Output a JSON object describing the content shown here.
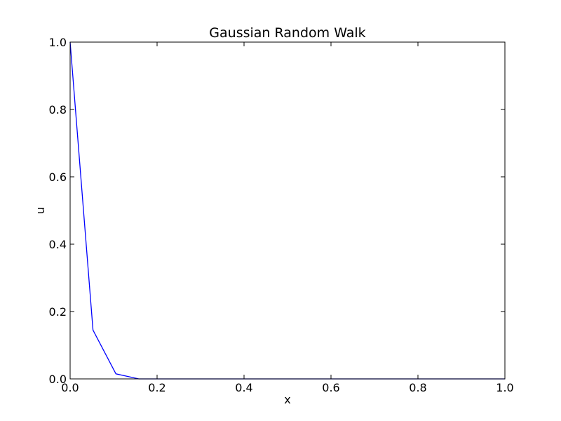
{
  "chart_data": {
    "type": "line",
    "title": "Gaussian Random Walk",
    "xlabel": "x",
    "ylabel": "u",
    "xlim": [
      0.0,
      1.0
    ],
    "ylim": [
      0.0,
      1.0
    ],
    "xticks": [
      "0.0",
      "0.2",
      "0.4",
      "0.6",
      "0.8",
      "1.0"
    ],
    "yticks": [
      "0.0",
      "0.2",
      "0.4",
      "0.6",
      "0.8",
      "1.0"
    ],
    "grid": false,
    "series": [
      {
        "color": "#0000ff",
        "x": [
          0.0,
          0.0526,
          0.1053,
          0.1579,
          0.2105,
          0.2632,
          0.3158,
          0.3684,
          0.4211,
          0.4737,
          0.5263,
          0.5789,
          0.6316,
          0.6842,
          0.7368,
          0.7895,
          0.8421,
          0.8947,
          0.9474,
          1.0
        ],
        "y": [
          1.0,
          0.145,
          0.015,
          0.0,
          0.0,
          0.0,
          0.0,
          0.0,
          0.0,
          0.0,
          0.0,
          0.0,
          0.0,
          0.0,
          0.0,
          0.0,
          0.0,
          0.0,
          0.0,
          0.0
        ]
      }
    ]
  }
}
